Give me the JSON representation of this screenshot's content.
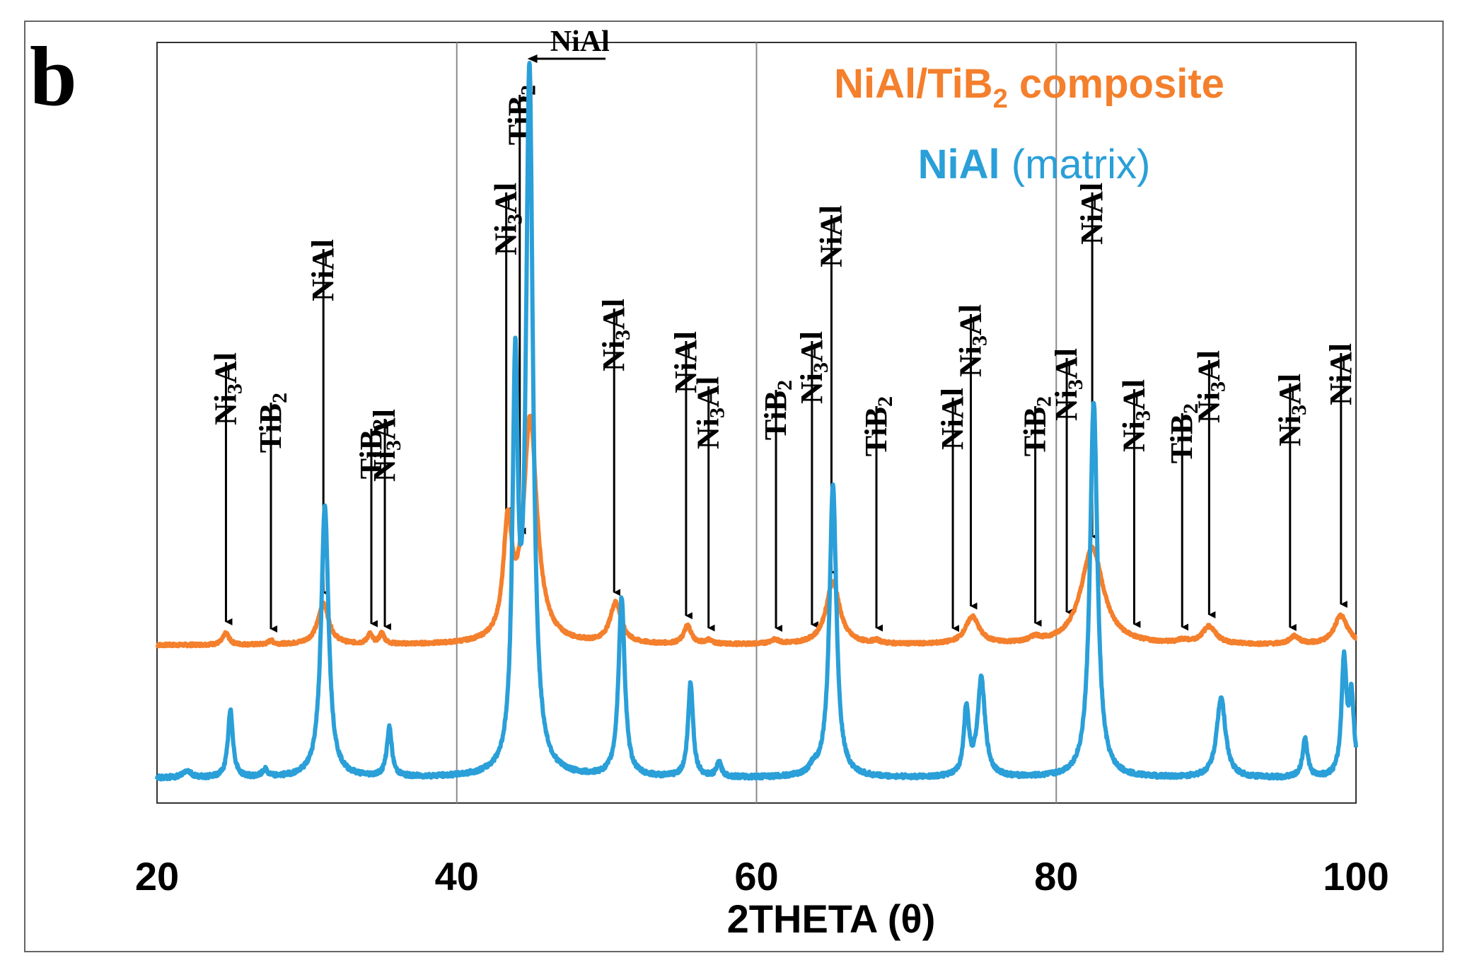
{
  "panel_label": "b",
  "chart_data": {
    "type": "line",
    "title": "",
    "xlabel": "2THETA (θ)",
    "ylabel": "",
    "xlim": [
      20,
      100
    ],
    "x_ticks": [
      20,
      40,
      60,
      80,
      100
    ],
    "x_tick_labels": [
      "20",
      "40",
      "60",
      "80",
      "100"
    ],
    "vertical_gridlines_at": [
      40,
      60,
      80
    ],
    "y_axis_shown": false,
    "legend": {
      "placement": "top-right",
      "entries": [
        {
          "name_parts": [
            "NiAl/TiB",
            "2",
            " composite"
          ],
          "series": "composite"
        },
        {
          "name_parts": [
            "NiAl",
            " (matrix)"
          ],
          "series": "matrix"
        }
      ]
    },
    "series": [
      {
        "name": "NiAl/TiB2 composite",
        "key": "composite",
        "color": "#F47F2C",
        "baseline": 0,
        "peaks": [
          {
            "x": 24.6,
            "height": 12,
            "width": 0.25
          },
          {
            "x": 27.6,
            "height": 4,
            "width": 0.2
          },
          {
            "x": 31.1,
            "height": 42,
            "width": 0.45
          },
          {
            "x": 34.2,
            "height": 10,
            "width": 0.2
          },
          {
            "x": 35.0,
            "height": 11,
            "width": 0.2
          },
          {
            "x": 43.4,
            "height": 112,
            "width": 0.35
          },
          {
            "x": 44.9,
            "height": 230,
            "width": 0.55
          },
          {
            "x": 50.6,
            "height": 42,
            "width": 0.45
          },
          {
            "x": 55.4,
            "height": 19,
            "width": 0.3
          },
          {
            "x": 56.8,
            "height": 4,
            "width": 0.3
          },
          {
            "x": 61.2,
            "height": 4,
            "width": 0.4
          },
          {
            "x": 65.1,
            "height": 65,
            "width": 0.55
          },
          {
            "x": 68.0,
            "height": 3,
            "width": 0.3
          },
          {
            "x": 74.4,
            "height": 28,
            "width": 0.55
          },
          {
            "x": 78.6,
            "height": 5,
            "width": 0.4
          },
          {
            "x": 82.4,
            "height": 100,
            "width": 0.9
          },
          {
            "x": 88.4,
            "height": 3,
            "width": 0.4
          },
          {
            "x": 90.2,
            "height": 18,
            "width": 0.55
          },
          {
            "x": 95.9,
            "height": 8,
            "width": 0.4
          },
          {
            "x": 99.0,
            "height": 30,
            "width": 0.55
          }
        ]
      },
      {
        "name": "NiAl (matrix)",
        "key": "matrix",
        "color": "#2A9FD8",
        "baseline": 0,
        "peaks": [
          {
            "x": 22.0,
            "height": 5,
            "width": 0.35
          },
          {
            "x": 24.9,
            "height": 48,
            "width": 0.2
          },
          {
            "x": 27.2,
            "height": 5,
            "width": 0.2
          },
          {
            "x": 31.2,
            "height": 195,
            "width": 0.3
          },
          {
            "x": 35.5,
            "height": 35,
            "width": 0.2
          },
          {
            "x": 43.9,
            "height": 275,
            "width": 0.22
          },
          {
            "x": 44.85,
            "height": 500,
            "width": 0.28
          },
          {
            "x": 51.0,
            "height": 128,
            "width": 0.25
          },
          {
            "x": 55.6,
            "height": 68,
            "width": 0.2
          },
          {
            "x": 57.5,
            "height": 10,
            "width": 0.2
          },
          {
            "x": 63.8,
            "height": 5,
            "width": 0.3
          },
          {
            "x": 65.1,
            "height": 210,
            "width": 0.28
          },
          {
            "x": 74.0,
            "height": 48,
            "width": 0.2
          },
          {
            "x": 75.0,
            "height": 70,
            "width": 0.3
          },
          {
            "x": 82.5,
            "height": 270,
            "width": 0.3
          },
          {
            "x": 91.0,
            "height": 58,
            "width": 0.35
          },
          {
            "x": 96.6,
            "height": 28,
            "width": 0.2
          },
          {
            "x": 99.2,
            "height": 82,
            "width": 0.2
          },
          {
            "x": 99.7,
            "height": 55,
            "width": 0.2
          }
        ]
      }
    ],
    "annotations": [
      {
        "parts": [
          [
            "Ni",
            false
          ],
          [
            "3",
            true
          ],
          [
            "Al",
            false
          ]
        ],
        "x": 24.6
      },
      {
        "parts": [
          [
            "TiB",
            false
          ],
          [
            "2",
            true
          ]
        ],
        "x": 27.6
      },
      {
        "parts": [
          [
            "NiAl",
            false
          ]
        ],
        "x": 31.1
      },
      {
        "parts": [
          [
            "TiB",
            false
          ],
          [
            "2",
            true
          ]
        ],
        "x": 34.3
      },
      {
        "parts": [
          [
            "Ni",
            false
          ],
          [
            "3",
            true
          ],
          [
            "Al",
            false
          ]
        ],
        "x": 35.2
      },
      {
        "parts": [
          [
            "Ni",
            false
          ],
          [
            "3",
            true
          ],
          [
            "Al",
            false
          ]
        ],
        "x": 43.3
      },
      {
        "parts": [
          [
            "TiB",
            false
          ],
          [
            "2",
            true
          ]
        ],
        "x": 44.2
      },
      {
        "parts": [
          [
            "Ni",
            false
          ],
          [
            "3",
            true
          ],
          [
            "Al",
            false
          ]
        ],
        "x": 50.5
      },
      {
        "parts": [
          [
            "NiAl",
            false
          ]
        ],
        "x": 55.3
      },
      {
        "parts": [
          [
            "Ni",
            false
          ],
          [
            "3",
            true
          ],
          [
            "Al",
            false
          ]
        ],
        "x": 56.8
      },
      {
        "parts": [
          [
            "TiB",
            false
          ],
          [
            "2",
            true
          ]
        ],
        "x": 61.3
      },
      {
        "parts": [
          [
            "Ni",
            false
          ],
          [
            "3",
            true
          ],
          [
            "Al",
            false
          ]
        ],
        "x": 63.7
      },
      {
        "parts": [
          [
            "NiAl",
            false
          ]
        ],
        "x": 65.0
      },
      {
        "parts": [
          [
            "TiB",
            false
          ],
          [
            "2",
            true
          ]
        ],
        "x": 68.0
      },
      {
        "parts": [
          [
            "NiAl",
            false
          ]
        ],
        "x": 73.1
      },
      {
        "parts": [
          [
            "Ni",
            false
          ],
          [
            "3",
            true
          ],
          [
            "Al",
            false
          ]
        ],
        "x": 74.3
      },
      {
        "parts": [
          [
            "TiB",
            false
          ],
          [
            "2",
            true
          ]
        ],
        "x": 78.6
      },
      {
        "parts": [
          [
            "Ni",
            false
          ],
          [
            "3",
            true
          ],
          [
            "Al",
            false
          ]
        ],
        "x": 80.7
      },
      {
        "parts": [
          [
            "NiAl",
            false
          ]
        ],
        "x": 82.4
      },
      {
        "parts": [
          [
            "Ni",
            false
          ],
          [
            "3",
            true
          ],
          [
            "Al",
            false
          ]
        ],
        "x": 85.2
      },
      {
        "parts": [
          [
            "TiB",
            false
          ],
          [
            "2",
            true
          ]
        ],
        "x": 88.4
      },
      {
        "parts": [
          [
            "Ni",
            false
          ],
          [
            "3",
            true
          ],
          [
            "Al",
            false
          ]
        ],
        "x": 90.2
      },
      {
        "parts": [
          [
            "Ni",
            false
          ],
          [
            "3",
            true
          ],
          [
            "Al",
            false
          ]
        ],
        "x": 95.6
      },
      {
        "parts": [
          [
            "NiAl",
            false
          ]
        ],
        "x": 99.0
      }
    ],
    "top_annotation": {
      "text": "NiAl",
      "x_from": 47.0,
      "x_to": 44.9
    }
  }
}
